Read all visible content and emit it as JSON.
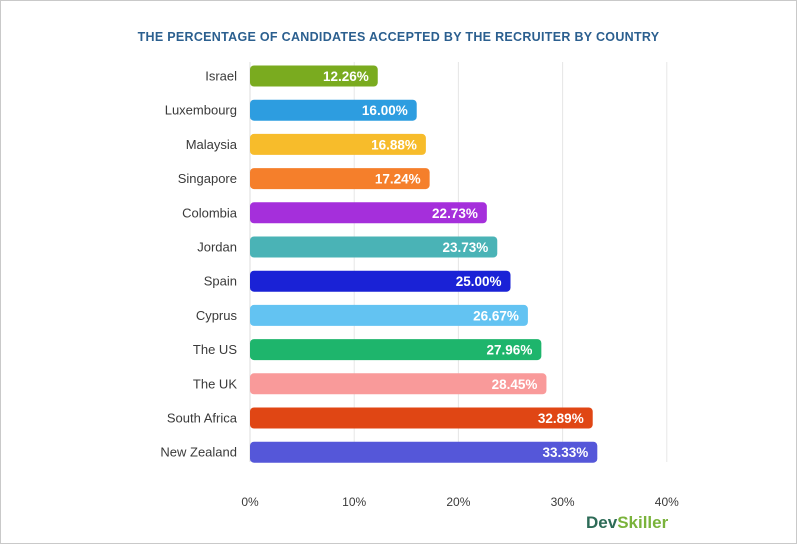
{
  "chart_data": {
    "type": "bar",
    "orientation": "horizontal",
    "title": "THE PERCENTAGE OF CANDIDATES ACCEPTED BY THE RECRUITER BY COUNTRY",
    "categories": [
      "Israel",
      "Luxembourg",
      "Malaysia",
      "Singapore",
      "Colombia",
      "Jordan",
      "Spain",
      "Cyprus",
      "The US",
      "The UK",
      "South Africa",
      "New Zealand"
    ],
    "values": [
      12.26,
      16.0,
      16.88,
      17.24,
      22.73,
      23.73,
      25.0,
      26.67,
      27.96,
      28.45,
      32.89,
      33.33
    ],
    "value_labels": [
      "12.26%",
      "16.00%",
      "16.88%",
      "17.24%",
      "22.73%",
      "23.73%",
      "25.00%",
      "26.67%",
      "27.96%",
      "28.45%",
      "32.89%",
      "33.33%"
    ],
    "colors": [
      "#7aab1f",
      "#2d9de0",
      "#f7bc2b",
      "#f57f2b",
      "#a52fdb",
      "#4ab3b6",
      "#1a22d6",
      "#63c3f2",
      "#1eb56c",
      "#f99a9a",
      "#e04614",
      "#5557d9"
    ],
    "xlim": [
      0,
      40
    ],
    "xticks": [
      0,
      10,
      20,
      30,
      40
    ],
    "xtick_labels": [
      "0%",
      "10%",
      "20%",
      "30%",
      "40%"
    ],
    "xlabel": "",
    "ylabel": "",
    "grid": true
  },
  "brand": {
    "part1": "Dev",
    "part2": "Skiller"
  }
}
